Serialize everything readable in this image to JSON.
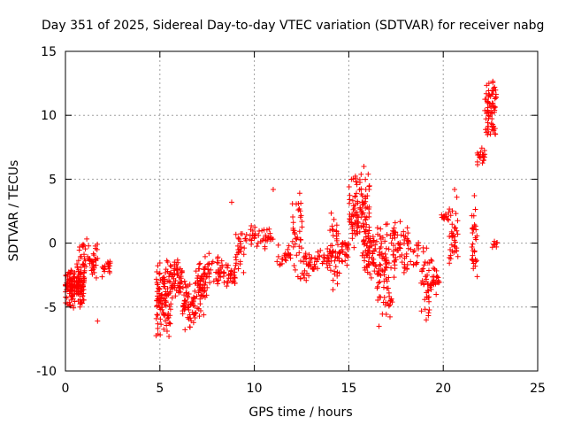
{
  "chart_data": {
    "type": "scatter",
    "title": "Day 351 of 2025, Sidereal Day-to-day VTEC variation (SDTVAR) for receiver nabg",
    "xlabel": "GPS time / hours",
    "ylabel": "SDTVAR / TECUs",
    "xlim": [
      0,
      25
    ],
    "ylim": [
      -10,
      15
    ],
    "xticks": [
      0,
      5,
      10,
      15,
      20,
      25
    ],
    "yticks": [
      -10,
      -5,
      0,
      5,
      10,
      15
    ],
    "xtick_labels": [
      "0",
      "5",
      "10",
      "15",
      "20",
      "25"
    ],
    "ytick_labels": [
      "-10",
      "-5",
      "0",
      "5",
      "10",
      "15"
    ],
    "grid": true,
    "marker": "+",
    "color": "#ff0000",
    "clusters": [
      {
        "x": [
          0.0,
          1.0
        ],
        "y": [
          -5.3,
          -1.5
        ],
        "n": 160
      },
      {
        "x": [
          0.6,
          1.7
        ],
        "y": [
          -3.0,
          0.4
        ],
        "n": 55
      },
      {
        "x": [
          1.9,
          2.4
        ],
        "y": [
          -2.8,
          -1.2
        ],
        "n": 18
      },
      {
        "x": [
          4.8,
          5.6
        ],
        "y": [
          -7.5,
          -0.8
        ],
        "n": 110
      },
      {
        "x": [
          5.6,
          6.2
        ],
        "y": [
          -4.5,
          -1.0
        ],
        "n": 50
      },
      {
        "x": [
          6.2,
          6.9
        ],
        "y": [
          -7.0,
          -2.5
        ],
        "n": 60
      },
      {
        "x": [
          6.9,
          7.5
        ],
        "y": [
          -6.0,
          -0.8
        ],
        "n": 60
      },
      {
        "x": [
          7.5,
          8.3
        ],
        "y": [
          -3.5,
          -0.5
        ],
        "n": 35
      },
      {
        "x": [
          8.3,
          9.0
        ],
        "y": [
          -3.5,
          -1.5
        ],
        "n": 30
      },
      {
        "x": [
          9.0,
          9.5
        ],
        "y": [
          -2.5,
          1.2
        ],
        "n": 25
      },
      {
        "x": [
          9.5,
          10.1
        ],
        "y": [
          -0.5,
          1.5
        ],
        "n": 18
      },
      {
        "x": [
          10.1,
          11.0
        ],
        "y": [
          -0.5,
          1.5
        ],
        "n": 25
      },
      {
        "x": [
          11.2,
          12.0
        ],
        "y": [
          -2.0,
          0.0
        ],
        "n": 22
      },
      {
        "x": [
          12.0,
          12.6
        ],
        "y": [
          -3.5,
          4.0
        ],
        "n": 40
      },
      {
        "x": [
          12.6,
          13.4
        ],
        "y": [
          -3.0,
          -0.5
        ],
        "n": 35
      },
      {
        "x": [
          13.4,
          14.0
        ],
        "y": [
          -2.0,
          0.0
        ],
        "n": 18
      },
      {
        "x": [
          14.0,
          14.5
        ],
        "y": [
          -4.5,
          2.5
        ],
        "n": 45
      },
      {
        "x": [
          14.5,
          15.0
        ],
        "y": [
          -2.0,
          0.5
        ],
        "n": 25
      },
      {
        "x": [
          15.0,
          15.5
        ],
        "y": [
          -1.0,
          5.5
        ],
        "n": 55
      },
      {
        "x": [
          15.5,
          16.1
        ],
        "y": [
          -1.0,
          5.8
        ],
        "n": 60
      },
      {
        "x": [
          15.7,
          16.5
        ],
        "y": [
          -3.0,
          1.5
        ],
        "n": 55
      },
      {
        "x": [
          16.5,
          17.3
        ],
        "y": [
          -6.5,
          2.2
        ],
        "n": 80
      },
      {
        "x": [
          17.3,
          18.2
        ],
        "y": [
          -3.0,
          2.0
        ],
        "n": 60
      },
      {
        "x": [
          18.2,
          18.7
        ],
        "y": [
          -2.0,
          0.5
        ],
        "n": 15
      },
      {
        "x": [
          18.8,
          19.4
        ],
        "y": [
          -6.0,
          0.0
        ],
        "n": 40
      },
      {
        "x": [
          19.4,
          19.8
        ],
        "y": [
          -4.5,
          -1.5
        ],
        "n": 20
      },
      {
        "x": [
          19.8,
          20.3
        ],
        "y": [
          1.5,
          2.5
        ],
        "n": 14
      },
      {
        "x": [
          20.3,
          20.8
        ],
        "y": [
          -2.5,
          4.0
        ],
        "n": 35
      },
      {
        "x": [
          21.5,
          21.8
        ],
        "y": [
          -3.0,
          4.5
        ],
        "n": 30
      },
      {
        "x": [
          21.8,
          22.2
        ],
        "y": [
          6.0,
          7.5
        ],
        "n": 18
      },
      {
        "x": [
          22.2,
          22.8
        ],
        "y": [
          8.0,
          13.2
        ],
        "n": 70
      },
      {
        "x": [
          22.6,
          22.9
        ],
        "y": [
          -0.5,
          0.3
        ],
        "n": 8
      }
    ],
    "outliers": [
      {
        "x": 1.7,
        "y": -6.1
      },
      {
        "x": 8.8,
        "y": 3.2
      },
      {
        "x": 11.0,
        "y": 4.2
      },
      {
        "x": 20.6,
        "y": 4.2
      },
      {
        "x": 12.4,
        "y": 3.9
      },
      {
        "x": 15.8,
        "y": 6.0
      },
      {
        "x": 16.6,
        "y": -6.5
      },
      {
        "x": 19.1,
        "y": -6.0
      }
    ]
  }
}
